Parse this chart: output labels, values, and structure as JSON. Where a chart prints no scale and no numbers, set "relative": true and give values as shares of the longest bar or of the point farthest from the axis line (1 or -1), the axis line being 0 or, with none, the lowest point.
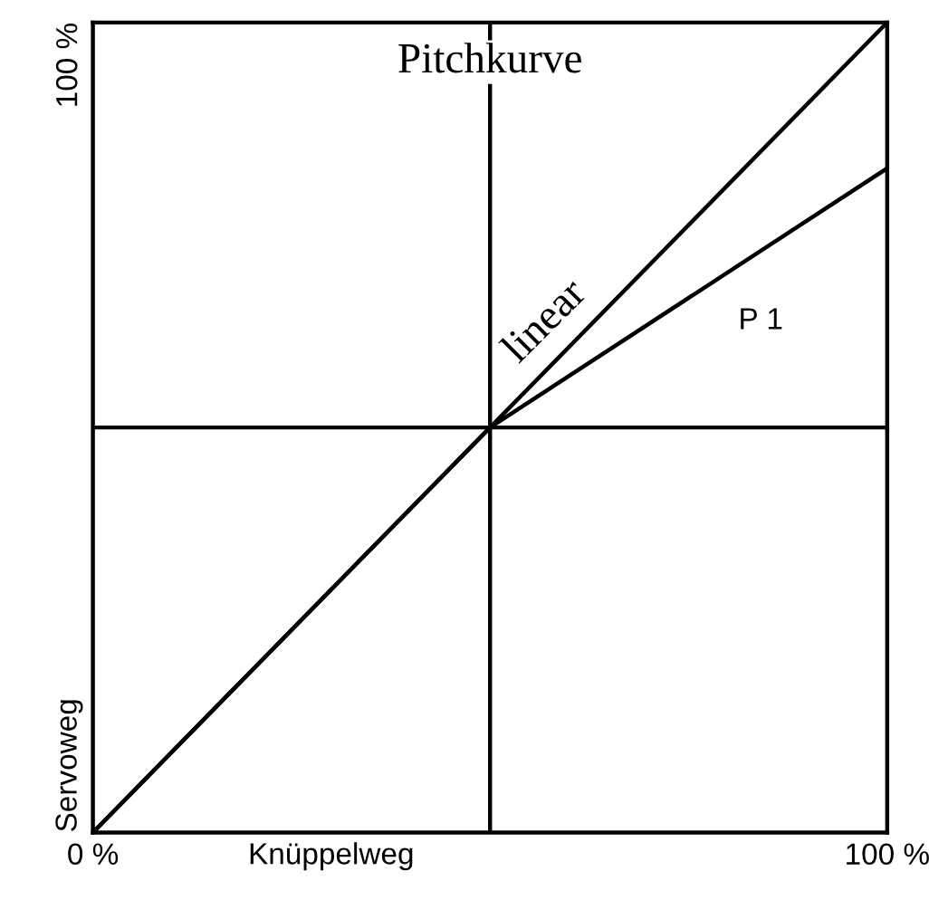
{
  "chart_data": {
    "type": "line",
    "title": "Pitchkurve",
    "xlabel": "Knüppelweg",
    "ylabel": "Servoweg",
    "relative": true,
    "xlim": [
      0,
      100
    ],
    "xticks": [
      {
        "value": 0,
        "label": "0 %"
      },
      {
        "value": 100,
        "label": "100 %"
      }
    ],
    "annotations": [
      "100 %"
    ],
    "series": [
      {
        "name": "linear",
        "color": "#000000",
        "x": [
          0,
          100
        ],
        "values": [
          0,
          1
        ]
      },
      {
        "name": "P 1",
        "color": "#000000",
        "x": [
          0,
          50,
          100
        ],
        "values": [
          0,
          0.5,
          0.82
        ]
      }
    ],
    "ref_lines": [
      {
        "axis": "x",
        "value": 50,
        "color": "#000000"
      },
      {
        "axis": "y",
        "value": 0.5,
        "color": "#000000"
      }
    ],
    "legend": false,
    "marker": "none",
    "line_style": "solid"
  }
}
